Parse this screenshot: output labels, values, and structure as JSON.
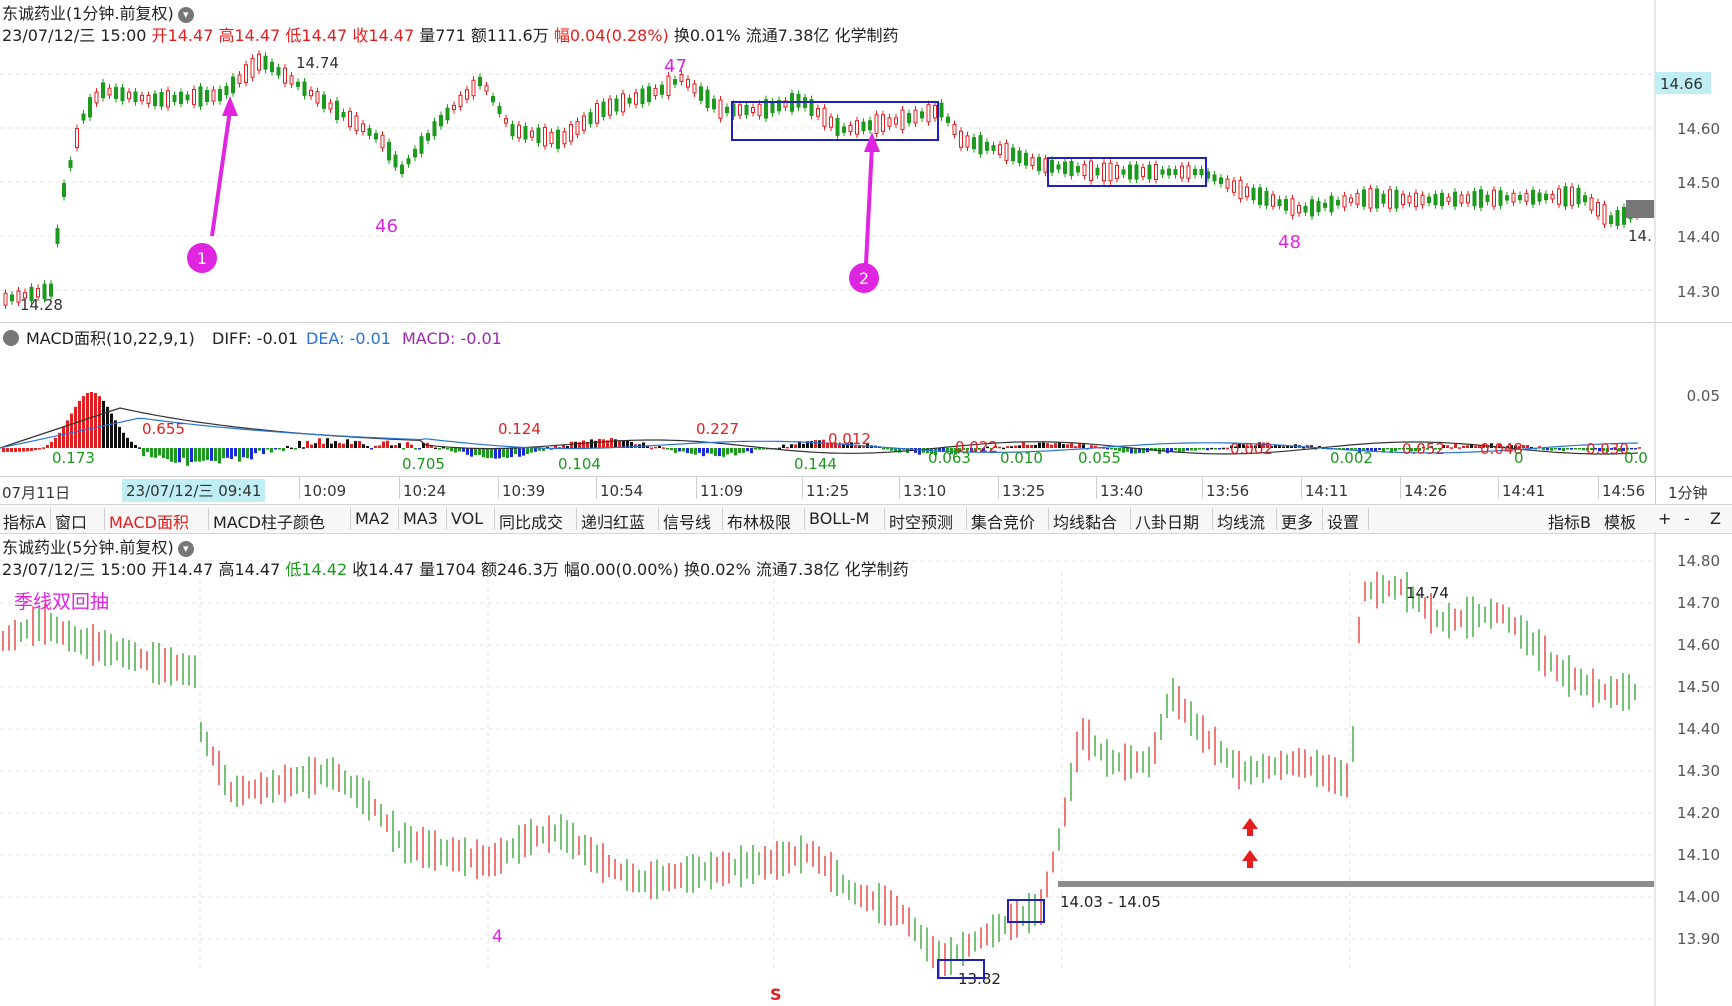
{
  "top": {
    "title": "东诚药业(1分钟.前复权)",
    "date": "23/07/12/三 15:00",
    "open_label": "开",
    "open": "14.47",
    "high_label": "高",
    "high": "14.47",
    "low_label": "低",
    "low": "14.47",
    "close_label": "收",
    "close": "14.47",
    "vol_label": "量",
    "vol": "771",
    "amt_label": "额",
    "amt": "111.6万",
    "chg_label": "幅",
    "chg": "0.04(0.28%)",
    "turnover": "换0.01%",
    "float": "流通7.38亿",
    "industry": "化学制药",
    "price_ticks": [
      "14.60",
      "14.50",
      "14.40",
      "14.30"
    ],
    "current_price": "14.66",
    "high_mark": "14.74",
    "low_mark": "14.28",
    "last_mark": "14.",
    "wave_46": "46",
    "wave_47": "47",
    "wave_48": "48",
    "circle_1": "1",
    "circle_2": "2"
  },
  "macd": {
    "name": "MACD面积(10,22,9,1)",
    "diff": "DIFF: -0.01",
    "dea": "DEA: -0.01",
    "macd": "MACD: -0.01",
    "tick": "0.05",
    "labels": [
      "0.655",
      "0.173",
      "0.124",
      "0.705",
      "0.227",
      "0.104",
      "0.012",
      "0.144",
      "0.022",
      "0.063",
      "0.010",
      "0.055",
      "0.002",
      "0.002",
      "0.052",
      "0.048",
      "0",
      "0.030",
      "0.0"
    ]
  },
  "time_axis": {
    "ticks": [
      "07月11日",
      "09",
      "10:09",
      "10:24",
      "10:39",
      "10:54",
      "11:09",
      "11:25",
      "13:10",
      "13:25",
      "13:40",
      "13:56",
      "14:11",
      "14:26",
      "14:41",
      "14:56"
    ],
    "cursor": "23/07/12/三 09:41",
    "period": "1分钟"
  },
  "tabs": {
    "items": [
      "指标A",
      "窗口",
      "MACD面积",
      "MACD柱子颜色",
      "MA2",
      "MA3",
      "VOL",
      "同比成交",
      "递归红蓝",
      "信号线",
      "布林极限",
      "BOLL-M",
      "时空预测",
      "集合竞价",
      "均线黏合",
      "八卦日期",
      "均线流",
      "更多",
      "设置"
    ],
    "active": "MACD面积",
    "right": [
      "指标B",
      "模板",
      "+",
      "-",
      "Z"
    ]
  },
  "bottom": {
    "title": "东诚药业(5分钟.前复权)",
    "date": "23/07/12/三 15:00",
    "open": "开14.47",
    "high": "高14.47",
    "low": "低14.42",
    "close": "收14.47",
    "vol": "量1704",
    "amt": "额246.3万",
    "chg": "幅0.00(0.00%)",
    "turnover": "换0.02%",
    "float": "流通7.38亿",
    "industry": "化学制药",
    "subtitle": "季线双回抽",
    "price_ticks": [
      "14.80",
      "14.70",
      "14.60",
      "14.50",
      "14.40",
      "14.30",
      "14.20",
      "14.10",
      "14.00",
      "13.90"
    ],
    "high_mark": "14.74",
    "low_mark": "13.82",
    "range_label": "14.03 - 14.05",
    "wave_4": "4",
    "s_mark": "S"
  },
  "colors": {
    "up": "#e41e1e",
    "down": "#1b9a1b",
    "box": "#2020c0",
    "accent": "#e025e0"
  }
}
